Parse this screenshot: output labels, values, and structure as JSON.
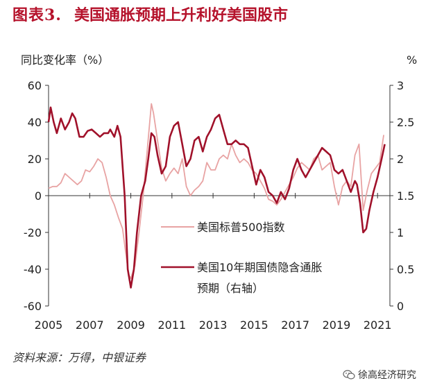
{
  "header": {
    "figure_label": "图表3.",
    "figure_title": "美国通胀预期上升利好美国股市"
  },
  "footer": {
    "source": "资料来源：万得，中银证券",
    "brand": "徐高经济研究",
    "brand_icon": "wechat-icon"
  },
  "colors": {
    "title": "#b5122b",
    "sp500": "#e8a3a3",
    "breakeven": "#a0112a",
    "axis": "#333333"
  },
  "chart_data": {
    "type": "line",
    "title": "美国通胀预期上升利好美国股市",
    "y_left_label": "同比变化率（%）",
    "y_right_label": "%",
    "y_left_lim": [
      -60,
      60
    ],
    "y_left_ticks": [
      -60,
      -40,
      -20,
      0,
      20,
      40,
      60
    ],
    "y_right_lim": [
      0,
      3
    ],
    "y_right_ticks": [
      "0",
      "0.5",
      "1",
      "1.5",
      "2",
      "2.5",
      "3"
    ],
    "x_lim": [
      2005,
      2021.6
    ],
    "x_ticks": [
      2005,
      2007,
      2009,
      2011,
      2013,
      2015,
      2017,
      2019,
      2021
    ],
    "grid": false,
    "legend_position": "center-left",
    "series": [
      {
        "name": "美国标普500指数",
        "axis": "left",
        "color": "#e8a3a3",
        "points": [
          [
            2005.0,
            4
          ],
          [
            2005.2,
            5
          ],
          [
            2005.4,
            5
          ],
          [
            2005.6,
            7
          ],
          [
            2005.8,
            12
          ],
          [
            2006.0,
            10
          ],
          [
            2006.2,
            8
          ],
          [
            2006.4,
            6
          ],
          [
            2006.6,
            8
          ],
          [
            2006.8,
            14
          ],
          [
            2007.0,
            13
          ],
          [
            2007.2,
            16
          ],
          [
            2007.4,
            20
          ],
          [
            2007.6,
            18
          ],
          [
            2007.8,
            10
          ],
          [
            2008.0,
            0
          ],
          [
            2008.2,
            -5
          ],
          [
            2008.4,
            -12
          ],
          [
            2008.6,
            -18
          ],
          [
            2008.8,
            -35
          ],
          [
            2008.9,
            -43
          ],
          [
            2009.0,
            -45
          ],
          [
            2009.2,
            -38
          ],
          [
            2009.4,
            -20
          ],
          [
            2009.6,
            0
          ],
          [
            2009.8,
            25
          ],
          [
            2010.0,
            50
          ],
          [
            2010.1,
            45
          ],
          [
            2010.3,
            30
          ],
          [
            2010.5,
            15
          ],
          [
            2010.7,
            8
          ],
          [
            2010.9,
            12
          ],
          [
            2011.1,
            15
          ],
          [
            2011.3,
            12
          ],
          [
            2011.5,
            20
          ],
          [
            2011.7,
            5
          ],
          [
            2011.9,
            0
          ],
          [
            2012.1,
            3
          ],
          [
            2012.3,
            5
          ],
          [
            2012.5,
            8
          ],
          [
            2012.7,
            18
          ],
          [
            2012.9,
            14
          ],
          [
            2013.1,
            14
          ],
          [
            2013.3,
            20
          ],
          [
            2013.5,
            22
          ],
          [
            2013.7,
            20
          ],
          [
            2013.9,
            28
          ],
          [
            2014.1,
            22
          ],
          [
            2014.3,
            18
          ],
          [
            2014.5,
            20
          ],
          [
            2014.7,
            18
          ],
          [
            2014.9,
            14
          ],
          [
            2015.1,
            12
          ],
          [
            2015.3,
            8
          ],
          [
            2015.5,
            4
          ],
          [
            2015.7,
            -2
          ],
          [
            2015.9,
            -3
          ],
          [
            2016.1,
            -5
          ],
          [
            2016.3,
            -2
          ],
          [
            2016.5,
            2
          ],
          [
            2016.7,
            6
          ],
          [
            2016.9,
            10
          ],
          [
            2017.1,
            15
          ],
          [
            2017.3,
            18
          ],
          [
            2017.5,
            16
          ],
          [
            2017.7,
            14
          ],
          [
            2017.9,
            20
          ],
          [
            2018.1,
            22
          ],
          [
            2018.3,
            14
          ],
          [
            2018.5,
            16
          ],
          [
            2018.7,
            18
          ],
          [
            2018.9,
            5
          ],
          [
            2019.1,
            -5
          ],
          [
            2019.3,
            5
          ],
          [
            2019.5,
            8
          ],
          [
            2019.7,
            5
          ],
          [
            2019.9,
            22
          ],
          [
            2020.1,
            28
          ],
          [
            2020.2,
            10
          ],
          [
            2020.3,
            -8
          ],
          [
            2020.5,
            3
          ],
          [
            2020.7,
            12
          ],
          [
            2020.9,
            15
          ],
          [
            2021.1,
            18
          ],
          [
            2021.3,
            33
          ]
        ]
      },
      {
        "name": "美国10年期国债隐含通胀预期（右轴）",
        "legend_lines": [
          "美国10年期国债隐含通胀",
          "预期（右轴）"
        ],
        "axis": "right",
        "color": "#a0112a",
        "points": [
          [
            2005.0,
            2.5
          ],
          [
            2005.1,
            2.7
          ],
          [
            2005.25,
            2.5
          ],
          [
            2005.4,
            2.35
          ],
          [
            2005.6,
            2.55
          ],
          [
            2005.8,
            2.4
          ],
          [
            2006.0,
            2.5
          ],
          [
            2006.15,
            2.62
          ],
          [
            2006.3,
            2.55
          ],
          [
            2006.5,
            2.3
          ],
          [
            2006.7,
            2.3
          ],
          [
            2006.9,
            2.38
          ],
          [
            2007.1,
            2.4
          ],
          [
            2007.3,
            2.35
          ],
          [
            2007.5,
            2.3
          ],
          [
            2007.7,
            2.35
          ],
          [
            2007.9,
            2.35
          ],
          [
            2008.0,
            2.4
          ],
          [
            2008.2,
            2.3
          ],
          [
            2008.35,
            2.45
          ],
          [
            2008.5,
            2.3
          ],
          [
            2008.7,
            1.5
          ],
          [
            2008.85,
            0.5
          ],
          [
            2009.0,
            0.25
          ],
          [
            2009.15,
            0.5
          ],
          [
            2009.3,
            1.0
          ],
          [
            2009.5,
            1.5
          ],
          [
            2009.7,
            1.7
          ],
          [
            2009.85,
            2.0
          ],
          [
            2010.0,
            2.35
          ],
          [
            2010.15,
            2.3
          ],
          [
            2010.3,
            2.05
          ],
          [
            2010.5,
            1.8
          ],
          [
            2010.7,
            1.9
          ],
          [
            2010.9,
            2.3
          ],
          [
            2011.1,
            2.45
          ],
          [
            2011.3,
            2.5
          ],
          [
            2011.5,
            2.2
          ],
          [
            2011.7,
            1.9
          ],
          [
            2011.9,
            2.0
          ],
          [
            2012.1,
            2.25
          ],
          [
            2012.3,
            2.3
          ],
          [
            2012.5,
            2.1
          ],
          [
            2012.7,
            2.3
          ],
          [
            2012.9,
            2.4
          ],
          [
            2013.1,
            2.55
          ],
          [
            2013.3,
            2.6
          ],
          [
            2013.5,
            2.4
          ],
          [
            2013.7,
            2.2
          ],
          [
            2013.9,
            2.2
          ],
          [
            2014.1,
            2.25
          ],
          [
            2014.3,
            2.2
          ],
          [
            2014.5,
            2.2
          ],
          [
            2014.7,
            2.15
          ],
          [
            2014.9,
            1.9
          ],
          [
            2015.1,
            1.65
          ],
          [
            2015.3,
            1.85
          ],
          [
            2015.5,
            1.75
          ],
          [
            2015.7,
            1.55
          ],
          [
            2015.9,
            1.5
          ],
          [
            2016.1,
            1.4
          ],
          [
            2016.3,
            1.55
          ],
          [
            2016.5,
            1.45
          ],
          [
            2016.7,
            1.6
          ],
          [
            2016.9,
            1.85
          ],
          [
            2017.1,
            2.0
          ],
          [
            2017.3,
            1.85
          ],
          [
            2017.5,
            1.75
          ],
          [
            2017.7,
            1.85
          ],
          [
            2017.9,
            1.95
          ],
          [
            2018.1,
            2.05
          ],
          [
            2018.3,
            2.15
          ],
          [
            2018.5,
            2.1
          ],
          [
            2018.7,
            2.05
          ],
          [
            2018.9,
            1.85
          ],
          [
            2019.1,
            1.8
          ],
          [
            2019.3,
            1.85
          ],
          [
            2019.5,
            1.7
          ],
          [
            2019.7,
            1.55
          ],
          [
            2019.9,
            1.7
          ],
          [
            2020.0,
            1.65
          ],
          [
            2020.15,
            1.4
          ],
          [
            2020.3,
            1.0
          ],
          [
            2020.45,
            1.05
          ],
          [
            2020.6,
            1.3
          ],
          [
            2020.8,
            1.55
          ],
          [
            2021.0,
            1.75
          ],
          [
            2021.2,
            2.0
          ],
          [
            2021.35,
            2.2
          ]
        ]
      }
    ]
  }
}
